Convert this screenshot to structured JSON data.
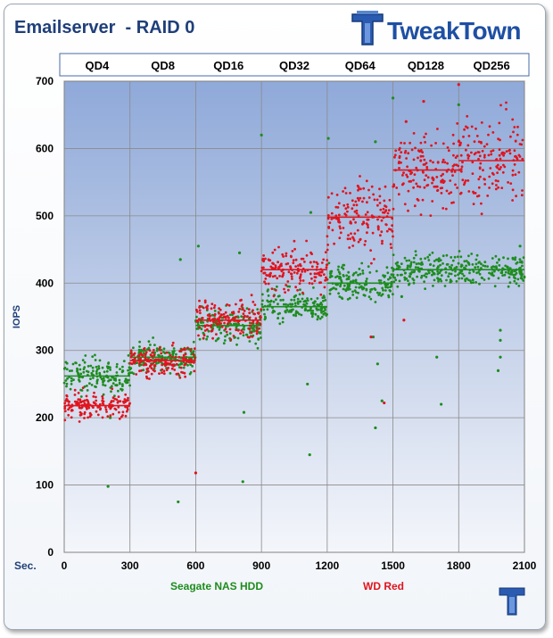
{
  "title": "Emailserver  - RAID 0",
  "logo": {
    "text": "TweakTown",
    "icon": "tweaktown-logo-icon"
  },
  "chart_data": {
    "type": "scatter",
    "title": "Emailserver  - RAID 0",
    "ylabel": "IOPS",
    "xlabel_prefix": "Sec.",
    "xlim": [
      0,
      2100
    ],
    "ylim": [
      0,
      700
    ],
    "x_ticks": [
      0,
      300,
      600,
      900,
      1200,
      1500,
      1800,
      2100
    ],
    "y_ticks": [
      0,
      100,
      200,
      300,
      400,
      500,
      600,
      700
    ],
    "grid": true,
    "segments": [
      {
        "label": "QD4",
        "x_start": 0,
        "x_end": 300
      },
      {
        "label": "QD8",
        "x_start": 300,
        "x_end": 600
      },
      {
        "label": "QD16",
        "x_start": 600,
        "x_end": 900
      },
      {
        "label": "QD32",
        "x_start": 900,
        "x_end": 1200
      },
      {
        "label": "QD64",
        "x_start": 1200,
        "x_end": 1500
      },
      {
        "label": "QD128",
        "x_start": 1500,
        "x_end": 1800
      },
      {
        "label": "QD256",
        "x_start": 1800,
        "x_end": 2100
      }
    ],
    "series": [
      {
        "name": "Seagate NAS HDD",
        "color": "#1e8c1e",
        "segment_means": [
          262,
          290,
          337,
          365,
          400,
          420,
          420
        ],
        "segment_spread": [
          22,
          18,
          22,
          20,
          20,
          20,
          20
        ],
        "outliers": [
          [
            200,
            98
          ],
          [
            210,
            200
          ],
          [
            520,
            75
          ],
          [
            612,
            455
          ],
          [
            530,
            435
          ],
          [
            800,
            445
          ],
          [
            820,
            208
          ],
          [
            815,
            105
          ],
          [
            900,
            620
          ],
          [
            1120,
            145
          ],
          [
            1110,
            250
          ],
          [
            1125,
            505
          ],
          [
            1205,
            615
          ],
          [
            1410,
            320
          ],
          [
            1430,
            280
          ],
          [
            1450,
            225
          ],
          [
            1420,
            185
          ],
          [
            1420,
            610
          ],
          [
            1500,
            675
          ],
          [
            1540,
            380
          ],
          [
            1700,
            290
          ],
          [
            1720,
            220
          ],
          [
            1800,
            665
          ],
          [
            1990,
            330
          ],
          [
            1990,
            315
          ],
          [
            1980,
            270
          ],
          [
            1990,
            290
          ],
          [
            2080,
            455
          ]
        ]
      },
      {
        "name": "WD Red",
        "color": "#e0141e",
        "segment_means": [
          218,
          285,
          345,
          420,
          498,
          568,
          582
        ],
        "segment_spread": [
          15,
          18,
          25,
          25,
          45,
          50,
          50
        ],
        "outliers": [
          [
            600,
            118
          ],
          [
            1400,
            320
          ],
          [
            1460,
            222
          ],
          [
            1550,
            345
          ],
          [
            1800,
            695
          ],
          [
            1560,
            640
          ],
          [
            1640,
            670
          ]
        ]
      }
    ]
  }
}
